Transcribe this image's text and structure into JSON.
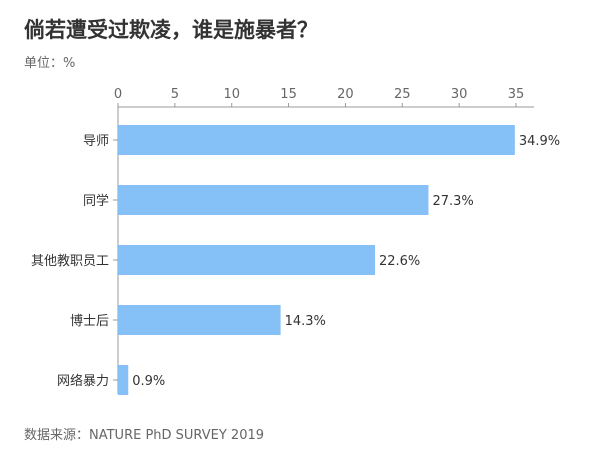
{
  "chart_data": {
    "type": "bar",
    "orientation": "horizontal",
    "title": "倘若遭受过欺凌，谁是施暴者？",
    "unit_label": "单位：%",
    "source": "数据来源：NATURE PhD SURVEY 2019",
    "categories": [
      "导师",
      "同学",
      "其他教职员工",
      "博士后",
      "网络暴力"
    ],
    "values": [
      34.9,
      27.3,
      22.6,
      14.3,
      0.9
    ],
    "data_labels": [
      "34.9%",
      "27.3%",
      "22.6%",
      "14.3%",
      "0.9%"
    ],
    "xlim": [
      0,
      35
    ],
    "x_ticks": [
      0,
      5,
      10,
      15,
      20,
      25,
      30,
      35
    ],
    "x_axis_position": "top",
    "grid": false,
    "bar_color": "#85c1f7"
  }
}
